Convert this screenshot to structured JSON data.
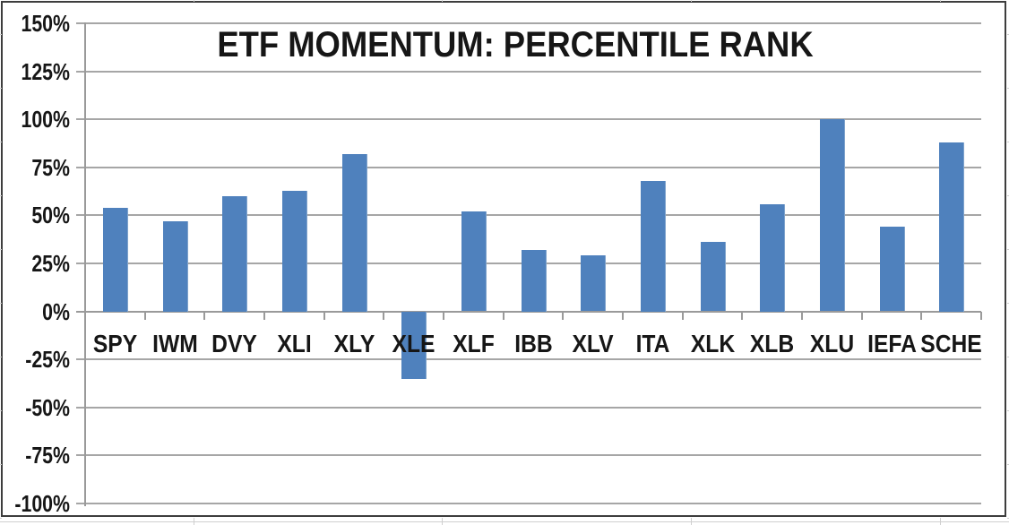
{
  "chart_data": {
    "type": "bar",
    "title": "ETF MOMENTUM: PERCENTILE RANK",
    "categories": [
      "SPY",
      "IWM",
      "DVY",
      "XLI",
      "XLY",
      "XLE",
      "XLF",
      "IBB",
      "XLV",
      "ITA",
      "XLK",
      "XLB",
      "XLU",
      "IEFA",
      "SCHE"
    ],
    "values": [
      54,
      47,
      60,
      63,
      82,
      -35,
      52,
      32,
      29,
      68,
      36,
      56,
      100,
      44,
      88
    ],
    "value_unit": "%",
    "xlabel": "",
    "ylabel": "",
    "ylim": [
      -100,
      150
    ],
    "ytick_step": 25,
    "ytick_labels": [
      "150%",
      "125%",
      "100%",
      "75%",
      "50%",
      "25%",
      "0%",
      "-25%",
      "-50%",
      "-75%",
      "-100%"
    ],
    "grid": true,
    "legend": "none",
    "colors": {
      "bar": "#4F81BD",
      "bar_edge": "#7FA3CC",
      "gridline": "#A6A6A6",
      "axis": "#9A9A9A",
      "text": "#161616",
      "chart_border": "#3D3D3D",
      "worksheet_gridline": "#CFCFCF"
    }
  }
}
